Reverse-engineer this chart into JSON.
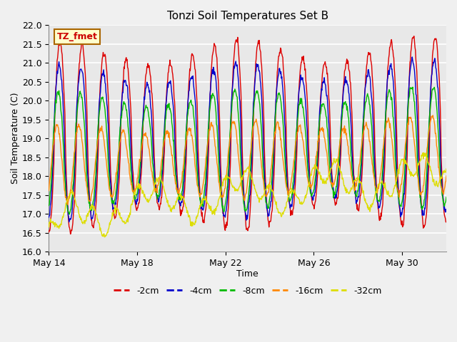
{
  "title": "Tonzi Soil Temperatures Set B",
  "xlabel": "Time",
  "ylabel": "Soil Temperature (C)",
  "annotation": "TZ_fmet",
  "ylim": [
    16.0,
    22.0
  ],
  "yticks": [
    16.0,
    16.5,
    17.0,
    17.5,
    18.0,
    18.5,
    19.0,
    19.5,
    20.0,
    20.5,
    21.0,
    21.5,
    22.0
  ],
  "series": [
    {
      "label": "-2cm",
      "color": "#dd0000",
      "lw": 1.0
    },
    {
      "label": "-4cm",
      "color": "#0000cc",
      "lw": 1.0
    },
    {
      "label": "-8cm",
      "color": "#00bb00",
      "lw": 1.0
    },
    {
      "label": "-16cm",
      "color": "#ff8800",
      "lw": 1.0
    },
    {
      "label": "-32cm",
      "color": "#dddd00",
      "lw": 1.0
    }
  ],
  "xtick_labels": [
    "May 14",
    "May 18",
    "May 22",
    "May 26",
    "May 30"
  ],
  "xtick_positions": [
    0,
    4,
    8,
    12,
    16
  ],
  "plot_bg": "#e8e8e8",
  "fig_bg": "#f0f0f0",
  "n_days": 18,
  "points_per_day": 48
}
